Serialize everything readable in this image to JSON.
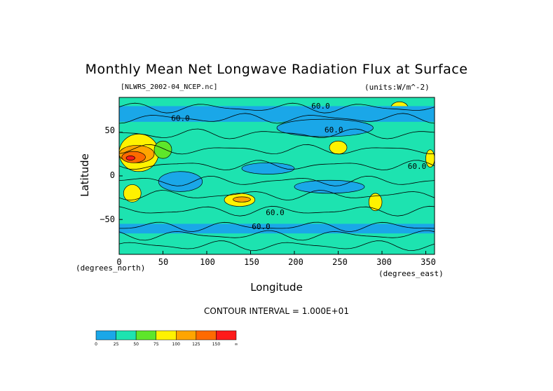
{
  "chart_data": {
    "type": "heatmap",
    "title": "Monthly Mean Net Longwave Radiation Flux at Surface",
    "file_label": "[NLWRS_2002-04_NCEP.nc]",
    "units_label": "(units:W/m^-2)",
    "xlabel": "Longitude",
    "ylabel": "Latitude",
    "x_units": "(degrees_east)",
    "y_units": "(degrees_north)",
    "xlim": [
      0,
      360
    ],
    "ylim": [
      -90,
      90
    ],
    "x_ticks": [
      0,
      50,
      100,
      150,
      200,
      250,
      300,
      350
    ],
    "x_tick_labels": [
      "0",
      "50",
      "100",
      "150",
      "200",
      "250",
      "300",
      "350"
    ],
    "y_ticks": [
      50,
      0,
      -50
    ],
    "y_tick_labels": [
      "50",
      "0",
      "−50"
    ],
    "contour_interval_text": "CONTOUR INTERVAL = 1.000E+01",
    "contour_labels": [
      {
        "text": "60.0",
        "x": 70,
        "y": 63
      },
      {
        "text": "60.0",
        "x": 230,
        "y": 77
      },
      {
        "text": "60.0",
        "x": 245,
        "y": 50
      },
      {
        "text": "60.0",
        "x": 340,
        "y": 8
      },
      {
        "text": "60.0",
        "x": 178,
        "y": -45
      },
      {
        "text": "60.0",
        "x": 162,
        "y": -61
      }
    ],
    "colorbar": {
      "levels": [
        "0",
        "25",
        "50",
        "75",
        "100",
        "125",
        "150",
        "∞"
      ],
      "colors": [
        "#1aa7e8",
        "#1de3b0",
        "#5ee62a",
        "#fff200",
        "#ffa500",
        "#ff6a00",
        "#ff1a1a"
      ]
    },
    "regions": [
      {
        "level": 1,
        "lon": [
          0,
          360
        ],
        "lat": [
          -90,
          90
        ],
        "note": "background ~40 W/m2"
      },
      {
        "level": 1,
        "lon": [
          0,
          360
        ],
        "lat": [
          -90,
          -72
        ]
      },
      {
        "level": 3,
        "lon": [
          0,
          45
        ],
        "lat": [
          5,
          48
        ]
      },
      {
        "level": 4,
        "lon": [
          0,
          40
        ],
        "lat": [
          15,
          35
        ]
      },
      {
        "level": 5,
        "lon": [
          3,
          30
        ],
        "lat": [
          15,
          28
        ]
      },
      {
        "level": 6,
        "lon": [
          8,
          18
        ],
        "lat": [
          18,
          23
        ]
      },
      {
        "level": 3,
        "lon": [
          120,
          155
        ],
        "lat": [
          -35,
          -20
        ]
      },
      {
        "level": 4,
        "lon": [
          130,
          150
        ],
        "lat": [
          -30,
          -24
        ]
      },
      {
        "level": 3,
        "lon": [
          240,
          260
        ],
        "lat": [
          25,
          40
        ]
      },
      {
        "level": 3,
        "lon": [
          350,
          360
        ],
        "lat": [
          10,
          30
        ]
      },
      {
        "level": 3,
        "lon": [
          285,
          300
        ],
        "lat": [
          -40,
          -20
        ]
      },
      {
        "level": 3,
        "lon": [
          5,
          25
        ],
        "lat": [
          -30,
          -10
        ]
      },
      {
        "level": 3,
        "lon": [
          310,
          330
        ],
        "lat": [
          70,
          85
        ]
      },
      {
        "level": 2,
        "lon": [
          40,
          60
        ],
        "lat": [
          20,
          40
        ]
      },
      {
        "level": 0,
        "lon": [
          0,
          360
        ],
        "lat": [
          62,
          80
        ],
        "note": "scattered cyan patches"
      },
      {
        "level": 0,
        "lon": [
          45,
          95
        ],
        "lat": [
          -18,
          5
        ]
      },
      {
        "level": 0,
        "lon": [
          140,
          200
        ],
        "lat": [
          2,
          15
        ]
      },
      {
        "level": 0,
        "lon": [
          200,
          280
        ],
        "lat": [
          -20,
          -5
        ]
      },
      {
        "level": 0,
        "lon": [
          0,
          360
        ],
        "lat": [
          -66,
          -55
        ]
      },
      {
        "level": 0,
        "lon": [
          180,
          290
        ],
        "lat": [
          45,
          65
        ]
      }
    ]
  }
}
